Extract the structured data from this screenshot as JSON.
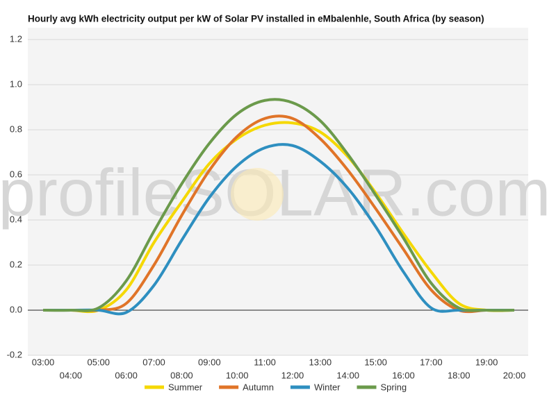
{
  "chart_data": {
    "type": "line",
    "title": "Hourly avg kWh electricity output per kW of Solar PV installed in eMbalenhle, South Africa (by season)",
    "watermark": "profileSOLAR.com",
    "categories": [
      "03:00",
      "04:00",
      "05:00",
      "06:00",
      "07:00",
      "08:00",
      "09:00",
      "10:00",
      "11:00",
      "12:00",
      "13:00",
      "14:00",
      "15:00",
      "16:00",
      "17:00",
      "18:00",
      "19:00",
      "20:00"
    ],
    "series": [
      {
        "name": "Summer",
        "color": "#f5d800",
        "values": [
          0,
          0,
          0,
          0.09,
          0.3,
          0.48,
          0.65,
          0.76,
          0.82,
          0.83,
          0.79,
          0.68,
          0.52,
          0.34,
          0.17,
          0.03,
          0,
          0
        ]
      },
      {
        "name": "Autumn",
        "color": "#e07428",
        "values": [
          0,
          0,
          0,
          0.03,
          0.2,
          0.42,
          0.62,
          0.77,
          0.85,
          0.85,
          0.76,
          0.62,
          0.45,
          0.27,
          0.09,
          0,
          0,
          0
        ]
      },
      {
        "name": "Winter",
        "color": "#2e8fc0",
        "values": [
          0,
          0,
          0,
          -0.01,
          0.11,
          0.31,
          0.5,
          0.64,
          0.72,
          0.73,
          0.66,
          0.54,
          0.37,
          0.17,
          0.01,
          0,
          0,
          0
        ]
      },
      {
        "name": "Spring",
        "color": "#6b9a4b",
        "values": [
          0,
          0,
          0.01,
          0.13,
          0.35,
          0.56,
          0.74,
          0.87,
          0.93,
          0.92,
          0.84,
          0.69,
          0.51,
          0.32,
          0.12,
          0.01,
          0,
          0
        ]
      }
    ],
    "ylim": [
      -0.2,
      1.2
    ],
    "yticks": [
      -0.2,
      {
        "value": 0,
        "label": "0.0"
      },
      0.2,
      0.4,
      0.6,
      0.8,
      {
        "value": 1,
        "label": "1.0"
      },
      1.2
    ],
    "grid": true,
    "legend": "bottom"
  }
}
